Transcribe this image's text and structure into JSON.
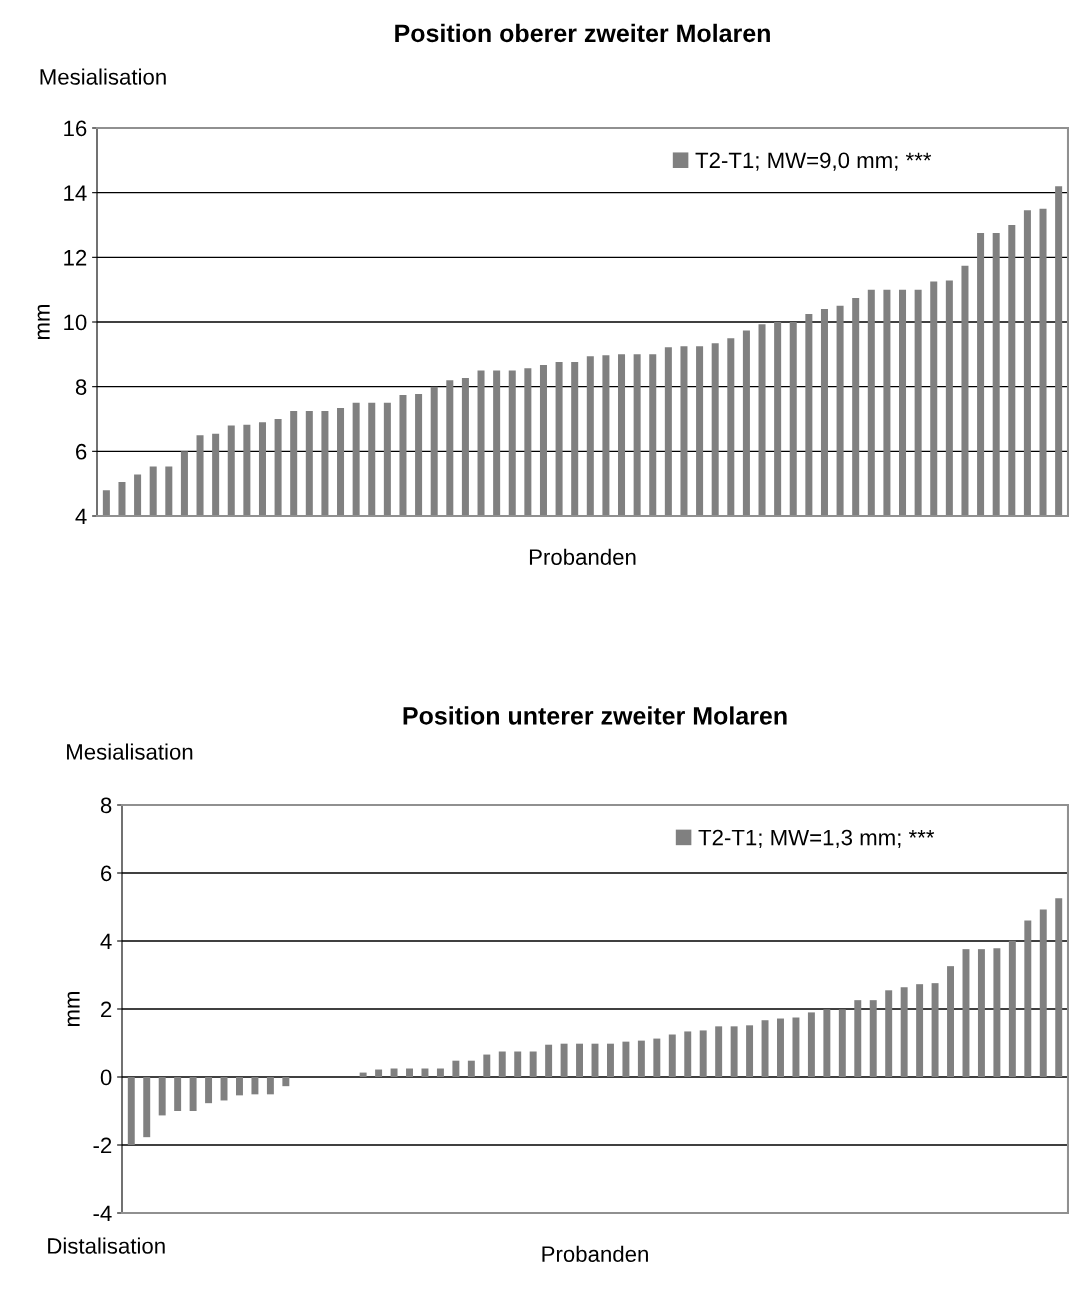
{
  "chart_data": [
    {
      "type": "bar",
      "title": "Position oberer zweiter Molaren",
      "xlabel": "Probanden",
      "ylabel": "mm",
      "annotations": [
        "Mesialisation"
      ],
      "categories": [
        null,
        null,
        null,
        null,
        null,
        null,
        null,
        null,
        null,
        null,
        null,
        null,
        null,
        null,
        null,
        null,
        null,
        null,
        null,
        null,
        null,
        null,
        null,
        null,
        null,
        null,
        null,
        null,
        null,
        null,
        null,
        null,
        null,
        null,
        null,
        null,
        null,
        null,
        null,
        null,
        null,
        null,
        null,
        null,
        null,
        null,
        null,
        null,
        null,
        null,
        null,
        null,
        null,
        null,
        null,
        null,
        null,
        null,
        null,
        null,
        null,
        null
      ],
      "series": [
        {
          "name": "T2-T1; MW=9,0 mm; ***",
          "color": "#808080",
          "values": [
            4.8,
            5.05,
            5.28,
            5.53,
            5.53,
            6.0,
            6.5,
            6.54,
            6.8,
            6.82,
            6.9,
            7.0,
            7.25,
            7.25,
            7.25,
            7.34,
            7.5,
            7.5,
            7.5,
            7.74,
            7.77,
            8.0,
            8.2,
            8.27,
            8.5,
            8.5,
            8.5,
            8.57,
            8.67,
            8.76,
            8.76,
            8.94,
            8.97,
            9.0,
            9.0,
            9.0,
            9.22,
            9.25,
            9.25,
            9.34,
            9.5,
            9.74,
            9.93,
            10.0,
            10.0,
            10.25,
            10.4,
            10.5,
            10.74,
            11.0,
            11.0,
            11.0,
            11.0,
            11.25,
            11.28,
            11.74,
            12.75,
            12.75,
            13.0,
            13.46,
            13.5,
            14.2
          ]
        }
      ],
      "ylim": [
        4,
        16
      ],
      "yticks": [
        4,
        6,
        8,
        10,
        12,
        14,
        16
      ],
      "grid": "y",
      "legend": "top right"
    },
    {
      "type": "bar",
      "title": "Position unterer zweiter Molaren",
      "xlabel": "Probanden",
      "ylabel": "mm",
      "annotations": [
        "Mesialisation",
        "Distalisation"
      ],
      "categories": [
        null,
        null,
        null,
        null,
        null,
        null,
        null,
        null,
        null,
        null,
        null,
        null,
        null,
        null,
        null,
        null,
        null,
        null,
        null,
        null,
        null,
        null,
        null,
        null,
        null,
        null,
        null,
        null,
        null,
        null,
        null,
        null,
        null,
        null,
        null,
        null,
        null,
        null,
        null,
        null,
        null,
        null,
        null,
        null,
        null,
        null,
        null,
        null,
        null,
        null,
        null,
        null,
        null,
        null,
        null,
        null,
        null,
        null,
        null,
        null,
        null
      ],
      "series": [
        {
          "name": "T2-T1; MW=1,3 mm; ***",
          "color": "#808080",
          "values": [
            -2.0,
            -1.77,
            -1.13,
            -1.0,
            -1.0,
            -0.77,
            -0.69,
            -0.54,
            -0.51,
            -0.51,
            -0.27,
            0,
            0,
            0,
            0,
            0.13,
            0.22,
            0.25,
            0.25,
            0.25,
            0.25,
            0.48,
            0.48,
            0.66,
            0.75,
            0.75,
            0.75,
            0.95,
            0.98,
            0.98,
            0.98,
            0.98,
            1.04,
            1.07,
            1.13,
            1.25,
            1.34,
            1.37,
            1.49,
            1.49,
            1.52,
            1.67,
            1.72,
            1.75,
            1.9,
            1.99,
            1.99,
            2.26,
            2.26,
            2.55,
            2.64,
            2.73,
            2.76,
            3.26,
            3.76,
            3.76,
            3.79,
            4.01,
            4.6,
            4.93,
            5.26
          ]
        }
      ],
      "ylim": [
        -4,
        8
      ],
      "yticks": [
        -4,
        -2,
        0,
        2,
        4,
        6,
        8
      ],
      "grid": "y",
      "legend": "top right"
    }
  ]
}
